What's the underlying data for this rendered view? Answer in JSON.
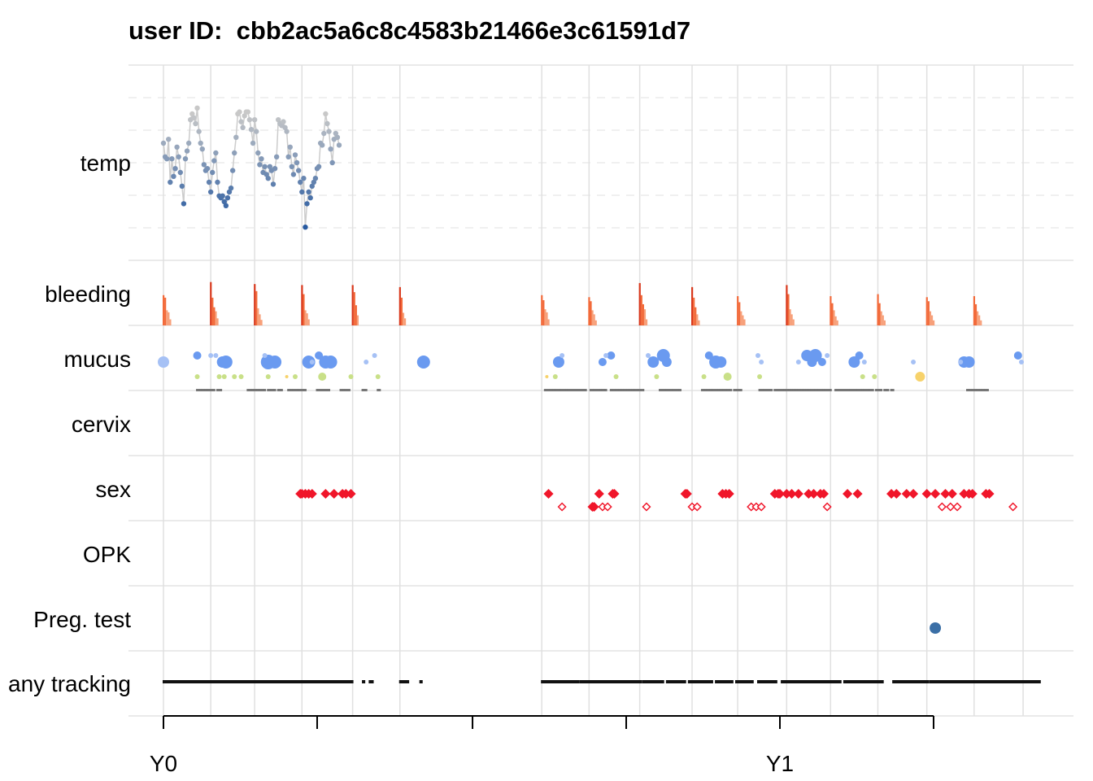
{
  "chart_data": {
    "type": "scatter",
    "title": "user ID:  cbb2ac5a6c8c4583b21466e3c61591d7",
    "rows": [
      "temp",
      "bleeding",
      "mucus",
      "cervix",
      "sex",
      "OPK",
      "Preg. test",
      "any tracking"
    ],
    "x_ticks": [
      {
        "day": 0,
        "label": "Y0"
      },
      {
        "day": 365,
        "label": "Y1"
      }
    ],
    "x_minor_ticks": [
      91,
      183,
      274,
      456
    ],
    "xlim": [
      -20,
      540
    ],
    "cycle_starts": [
      0,
      28,
      54,
      82,
      112,
      140,
      224,
      252,
      282,
      313,
      340,
      369,
      395,
      423,
      452,
      480,
      509
    ],
    "month_gridlines": [
      0,
      28,
      54,
      82,
      112,
      140,
      224,
      252,
      282,
      313,
      340,
      369,
      395,
      423,
      452,
      480,
      509
    ],
    "temp": {
      "note_ylim": [
        0,
        1
      ],
      "points": [
        [
          0,
          0.6
        ],
        [
          1,
          0.53
        ],
        [
          2,
          0.52
        ],
        [
          3,
          0.62
        ],
        [
          4,
          0.4
        ],
        [
          5,
          0.52
        ],
        [
          6,
          0.43
        ],
        [
          7,
          0.47
        ],
        [
          8,
          0.58
        ],
        [
          9,
          0.53
        ],
        [
          10,
          0.45
        ],
        [
          11,
          0.38
        ],
        [
          12,
          0.29
        ],
        [
          13,
          0.52
        ],
        [
          14,
          0.56
        ],
        [
          15,
          0.6
        ],
        [
          16,
          0.72
        ],
        [
          17,
          0.75
        ],
        [
          18,
          0.73
        ],
        [
          19,
          0.7
        ],
        [
          20,
          0.78
        ],
        [
          21,
          0.66
        ],
        [
          22,
          0.6
        ],
        [
          23,
          0.57
        ],
        [
          24,
          0.49
        ],
        [
          25,
          0.46
        ],
        [
          26,
          0.47
        ],
        [
          27,
          0.4
        ],
        [
          28,
          0.35
        ],
        [
          29,
          0.45
        ],
        [
          30,
          0.51
        ],
        [
          31,
          0.55
        ],
        [
          32,
          0.4
        ],
        [
          33,
          0.33
        ],
        [
          34,
          0.32
        ],
        [
          35,
          0.33
        ],
        [
          36,
          0.3
        ],
        [
          37,
          0.28
        ],
        [
          38,
          0.32
        ],
        [
          39,
          0.35
        ],
        [
          40,
          0.37
        ],
        [
          41,
          0.46
        ],
        [
          42,
          0.55
        ],
        [
          43,
          0.63
        ],
        [
          44,
          0.75
        ],
        [
          45,
          0.76
        ],
        [
          46,
          0.71
        ],
        [
          47,
          0.68
        ],
        [
          48,
          0.74
        ],
        [
          49,
          0.76
        ],
        [
          50,
          0.76
        ],
        [
          51,
          0.72
        ],
        [
          52,
          0.67
        ],
        [
          53,
          0.6
        ],
        [
          54,
          0.72
        ],
        [
          55,
          0.66
        ],
        [
          56,
          0.55
        ],
        [
          57,
          0.49
        ],
        [
          58,
          0.52
        ],
        [
          59,
          0.45
        ],
        [
          60,
          0.48
        ],
        [
          61,
          0.44
        ],
        [
          62,
          0.42
        ],
        [
          63,
          0.48
        ],
        [
          64,
          0.46
        ],
        [
          65,
          0.39
        ],
        [
          66,
          0.47
        ],
        [
          67,
          0.53
        ],
        [
          68,
          0.72
        ],
        [
          69,
          0.7
        ],
        [
          70,
          0.69
        ],
        [
          71,
          0.71
        ],
        [
          72,
          0.68
        ],
        [
          73,
          0.66
        ],
        [
          74,
          0.53
        ],
        [
          75,
          0.58
        ],
        [
          76,
          0.48
        ],
        [
          77,
          0.44
        ],
        [
          78,
          0.54
        ],
        [
          79,
          0.5
        ],
        [
          80,
          0.46
        ],
        [
          81,
          0.4
        ],
        [
          82,
          0.35
        ],
        [
          83,
          0.42
        ],
        [
          84,
          0.17
        ],
        [
          85,
          0.29
        ],
        [
          86,
          0.35
        ],
        [
          87,
          0.32
        ],
        [
          88,
          0.38
        ],
        [
          89,
          0.4
        ],
        [
          90,
          0.42
        ],
        [
          91,
          0.47
        ],
        [
          92,
          0.48
        ],
        [
          93,
          0.6
        ],
        [
          94,
          0.59
        ],
        [
          95,
          0.65
        ],
        [
          96,
          0.75
        ],
        [
          97,
          0.7
        ],
        [
          98,
          0.66
        ],
        [
          99,
          0.57
        ],
        [
          100,
          0.5
        ],
        [
          101,
          0.62
        ],
        [
          102,
          0.65
        ],
        [
          103,
          0.63
        ],
        [
          104,
          0.59
        ]
      ]
    },
    "bleeding": {
      "ylim": [
        0,
        1
      ],
      "bars": [
        [
          0,
          0.6
        ],
        [
          1,
          0.55
        ],
        [
          2,
          0.3
        ],
        [
          3,
          0.26
        ],
        [
          4,
          0.12
        ],
        [
          28,
          0.86
        ],
        [
          29,
          0.55
        ],
        [
          30,
          0.36
        ],
        [
          31,
          0.28
        ],
        [
          32,
          0.14
        ],
        [
          54,
          0.82
        ],
        [
          55,
          0.68
        ],
        [
          56,
          0.34
        ],
        [
          57,
          0.22
        ],
        [
          58,
          0.11
        ],
        [
          82,
          0.8
        ],
        [
          83,
          0.62
        ],
        [
          84,
          0.3
        ],
        [
          85,
          0.24
        ],
        [
          86,
          0.12
        ],
        [
          112,
          0.8
        ],
        [
          113,
          0.66
        ],
        [
          114,
          0.4
        ],
        [
          115,
          0.2
        ],
        [
          140,
          0.76
        ],
        [
          141,
          0.55
        ],
        [
          142,
          0.25
        ],
        [
          143,
          0.14
        ],
        [
          224,
          0.6
        ],
        [
          225,
          0.5
        ],
        [
          226,
          0.32
        ],
        [
          227,
          0.26
        ],
        [
          228,
          0.12
        ],
        [
          252,
          0.56
        ],
        [
          253,
          0.48
        ],
        [
          254,
          0.3
        ],
        [
          255,
          0.22
        ],
        [
          256,
          0.1
        ],
        [
          282,
          0.84
        ],
        [
          283,
          0.6
        ],
        [
          284,
          0.42
        ],
        [
          285,
          0.32
        ],
        [
          286,
          0.12
        ],
        [
          313,
          0.76
        ],
        [
          314,
          0.55
        ],
        [
          315,
          0.36
        ],
        [
          316,
          0.22
        ],
        [
          317,
          0.1
        ],
        [
          340,
          0.58
        ],
        [
          341,
          0.46
        ],
        [
          342,
          0.28
        ],
        [
          343,
          0.2
        ],
        [
          344,
          0.12
        ],
        [
          369,
          0.8
        ],
        [
          370,
          0.62
        ],
        [
          371,
          0.32
        ],
        [
          372,
          0.22
        ],
        [
          373,
          0.12
        ],
        [
          395,
          0.58
        ],
        [
          396,
          0.44
        ],
        [
          397,
          0.3
        ],
        [
          398,
          0.18
        ],
        [
          399,
          0.1
        ],
        [
          423,
          0.62
        ],
        [
          424,
          0.44
        ],
        [
          425,
          0.28
        ],
        [
          426,
          0.2
        ],
        [
          427,
          0.1
        ],
        [
          452,
          0.56
        ],
        [
          453,
          0.48
        ],
        [
          454,
          0.28
        ],
        [
          455,
          0.2
        ],
        [
          456,
          0.1
        ],
        [
          480,
          0.58
        ],
        [
          481,
          0.42
        ],
        [
          482,
          0.28
        ],
        [
          483,
          0.2
        ],
        [
          484,
          0.1
        ]
      ]
    },
    "mucus": {
      "levels": [
        "dark",
        "top",
        "middle",
        "low"
      ],
      "points": [
        [
          0,
          "top",
          7,
          "#a6c1f5"
        ],
        [
          20,
          "upper",
          5,
          "#6a9af0"
        ],
        [
          28,
          "upper",
          3,
          "#a6c1f5"
        ],
        [
          31,
          "upper",
          3,
          "#a6c1f5"
        ],
        [
          35,
          "top",
          7,
          "#6a9af0"
        ],
        [
          37,
          "top",
          8,
          "#6a9af0"
        ],
        [
          62,
          "top",
          9,
          "#6a9af0"
        ],
        [
          66,
          "top",
          8,
          "#6a9af0"
        ],
        [
          60,
          "upper",
          3,
          "#a6c1f5"
        ],
        [
          86,
          "top",
          8,
          "#6a9af0"
        ],
        [
          92,
          "upper",
          5,
          "#6a9af0"
        ],
        [
          96,
          "top",
          8,
          "#6a9af0"
        ],
        [
          99,
          "top",
          8,
          "#6a9af0"
        ],
        [
          88,
          "top",
          3,
          "#a6c1f5"
        ],
        [
          120,
          "top",
          3,
          "#a6c1f5"
        ],
        [
          125,
          "upper",
          3,
          "#a6c1f5"
        ],
        [
          154,
          "top",
          8,
          "#6a9af0"
        ],
        [
          234,
          "top",
          7,
          "#6a9af0"
        ],
        [
          236,
          "upper",
          3,
          "#a6c1f5"
        ],
        [
          260,
          "top",
          5,
          "#6a9af0"
        ],
        [
          265,
          "upper",
          5,
          "#6a9af0"
        ],
        [
          262,
          "upper",
          3,
          "#a6c1f5"
        ],
        [
          290,
          "top",
          7,
          "#6a9af0"
        ],
        [
          296,
          "upper",
          8,
          "#6a9af0"
        ],
        [
          298,
          "top",
          6,
          "#6a9af0"
        ],
        [
          287,
          "upper",
          3,
          "#a6c1f5"
        ],
        [
          323,
          "upper",
          5,
          "#6a9af0"
        ],
        [
          327,
          "top",
          8,
          "#6a9af0"
        ],
        [
          330,
          "top",
          7,
          "#6a9af0"
        ],
        [
          352,
          "upper",
          3,
          "#a6c1f5"
        ],
        [
          354,
          "top",
          3,
          "#a6c1f5"
        ],
        [
          376,
          "top",
          3,
          "#a6c1f5"
        ],
        [
          381,
          "upper",
          7,
          "#6a9af0"
        ],
        [
          384,
          "top",
          6,
          "#6a9af0"
        ],
        [
          386,
          "upper",
          8,
          "#6a9af0"
        ],
        [
          390,
          "top",
          5,
          "#6a9af0"
        ],
        [
          393,
          "upper",
          3,
          "#a6c1f5"
        ],
        [
          409,
          "top",
          7,
          "#6a9af0"
        ],
        [
          412,
          "upper",
          5,
          "#6a9af0"
        ],
        [
          415,
          "top",
          3,
          "#a6c1f5"
        ],
        [
          444,
          "top",
          3,
          "#a6c1f5"
        ],
        [
          474,
          "top",
          7,
          "#6a9af0"
        ],
        [
          477,
          "top",
          7,
          "#6a9af0"
        ],
        [
          472,
          "top",
          3,
          "#a6c1f5"
        ],
        [
          506,
          "upper",
          5,
          "#6a9af0"
        ],
        [
          508,
          "top",
          3,
          "#a6c1f5"
        ]
      ],
      "mid_points": [
        [
          20,
          3,
          "#c9e088"
        ],
        [
          33,
          3,
          "#c9e088"
        ],
        [
          36,
          3,
          "#c9e088"
        ],
        [
          42,
          3,
          "#c9e088"
        ],
        [
          46,
          3,
          "#c9e088"
        ],
        [
          62,
          3,
          "#c9e088"
        ],
        [
          73,
          2,
          "#f7d26b"
        ],
        [
          78,
          3,
          "#c9e088"
        ],
        [
          94,
          5,
          "#c9e088"
        ],
        [
          111,
          3,
          "#c9e088"
        ],
        [
          127,
          3,
          "#c9e088"
        ],
        [
          227,
          2,
          "#f7d26b"
        ],
        [
          232,
          3,
          "#c9e088"
        ],
        [
          268,
          3,
          "#c9e088"
        ],
        [
          292,
          3,
          "#c9e088"
        ],
        [
          320,
          3,
          "#c9e088"
        ],
        [
          334,
          5,
          "#c9e088"
        ],
        [
          353,
          3,
          "#c9e088"
        ],
        [
          414,
          3,
          "#c9e088"
        ],
        [
          421,
          3,
          "#c9e088"
        ],
        [
          448,
          6,
          "#f7d26b"
        ]
      ],
      "dark_ranges": [
        [
          20,
          30
        ],
        [
          32,
          34
        ],
        [
          50,
          60
        ],
        [
          62,
          66
        ],
        [
          68,
          70
        ],
        [
          74,
          84
        ],
        [
          91,
          98
        ],
        [
          105,
          110
        ],
        [
          118,
          120
        ],
        [
          127,
          128
        ],
        [
          226,
          250
        ],
        [
          253,
          262
        ],
        [
          265,
          284
        ],
        [
          294,
          306
        ],
        [
          319,
          336
        ],
        [
          338,
          342
        ],
        [
          353,
          360
        ],
        [
          362,
          395
        ],
        [
          398,
          420
        ],
        [
          422,
          425
        ],
        [
          427,
          429
        ],
        [
          431,
          432
        ],
        [
          476,
          488
        ]
      ]
    },
    "sex": {
      "filled": [
        81,
        82,
        84,
        86,
        88,
        96,
        101,
        106,
        108,
        111,
        228,
        258,
        266,
        267,
        309,
        310,
        331,
        333,
        335,
        362,
        364,
        365,
        369,
        372,
        376,
        382,
        385,
        389,
        391,
        405,
        411,
        431,
        434,
        440,
        444,
        452,
        457,
        463,
        467,
        474,
        477,
        479,
        487,
        489
      ],
      "filled_low": [
        254,
        255
      ],
      "open": [
        93,
        236,
        260,
        263,
        255,
        285,
        315,
        314,
        351,
        353,
        360,
        381,
        393,
        428,
        452,
        472,
        460,
        466,
        469,
        478,
        502,
        497
      ],
      "open_row2": [
        236,
        260,
        263,
        286,
        313,
        316,
        348,
        351,
        354,
        393,
        461,
        466,
        470,
        503
      ],
      "sex_row1_clusters": "see filled"
    },
    "preg_test": {
      "points": [
        [
          457,
          "#3b6fa6"
        ]
      ]
    },
    "any_tracking": {
      "ranges": [
        [
          0,
          112
        ],
        [
          118,
          119
        ],
        [
          122,
          124
        ],
        [
          140,
          145
        ],
        [
          152,
          153
        ],
        [
          224,
          246
        ],
        [
          247,
          283
        ],
        [
          284,
          296
        ],
        [
          298,
          309
        ],
        [
          311,
          325
        ],
        [
          327,
          337
        ],
        [
          339,
          349
        ],
        [
          352,
          363
        ],
        [
          366,
          401
        ],
        [
          403,
          426
        ],
        [
          432,
          453
        ],
        [
          454,
          519
        ]
      ]
    }
  }
}
